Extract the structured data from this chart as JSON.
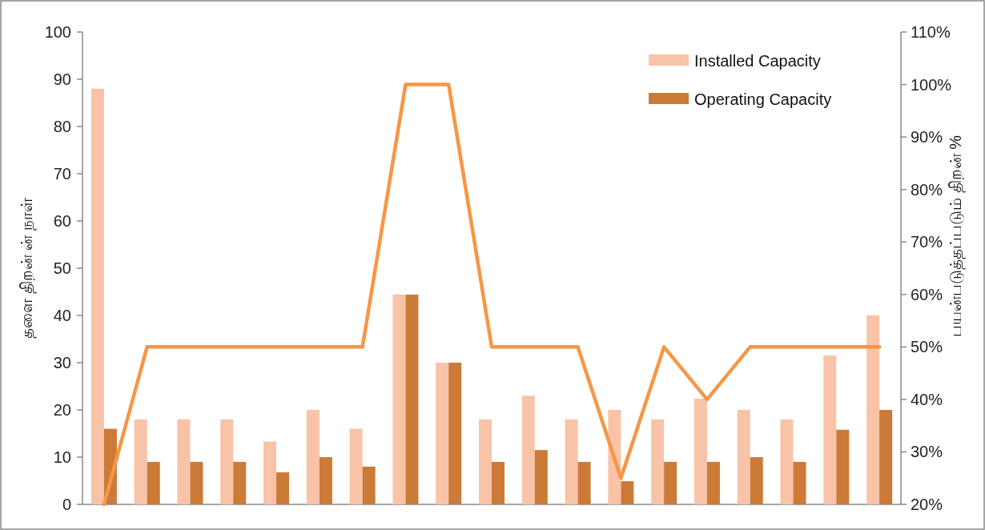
{
  "chart_data": {
    "type": "bar",
    "ylabel": "தளை திறன் ன் நாள்",
    "y2label": "பயன்படுத்தப்படும் திறன் %",
    "categories": [
      null,
      null,
      null,
      null,
      null,
      null,
      null,
      null,
      null,
      null,
      null,
      null,
      null,
      null,
      null,
      null,
      null,
      null,
      null
    ],
    "series": [
      {
        "name": "Installed Capacity",
        "color": "#f8c3a7",
        "values": [
          88,
          18,
          18,
          18,
          13.3,
          20,
          16,
          44.4,
          30,
          18,
          23,
          18,
          20,
          18,
          22.4,
          20,
          18,
          31.5,
          40
        ]
      },
      {
        "name": "Operating Capacity",
        "color": "#cc7a38",
        "values": [
          16,
          9,
          9,
          9,
          6.8,
          10,
          8,
          44.4,
          30,
          9,
          11.5,
          9,
          4.9,
          9,
          9,
          10,
          9,
          15.8,
          20
        ]
      },
      {
        "type": "line",
        "axis": "y2",
        "color": "#f79646",
        "values": [
          20,
          50,
          50,
          50,
          50,
          50,
          50,
          100,
          100,
          50,
          50,
          50,
          25,
          50,
          40,
          50,
          50,
          50,
          50
        ]
      }
    ],
    "ylim": [
      0,
      100
    ],
    "yticks": [
      0,
      10,
      20,
      30,
      40,
      50,
      60,
      70,
      80,
      90,
      100
    ],
    "y2lim": [
      20,
      110
    ],
    "y2ticks": [
      {
        "value": 20,
        "label": "20%"
      },
      {
        "value": 30,
        "label": "30%"
      },
      {
        "value": 40,
        "label": "40%"
      },
      {
        "value": 50,
        "label": "50%"
      },
      {
        "value": 60,
        "label": "60%"
      },
      {
        "value": 70,
        "label": "70%"
      },
      {
        "value": 80,
        "label": "80%"
      },
      {
        "value": 90,
        "label": "90%"
      },
      {
        "value": 100,
        "label": "100%"
      },
      {
        "value": 110,
        "label": "110%"
      }
    ],
    "legend": "top right",
    "grid": false,
    "marker": "none",
    "line_style": "solid"
  }
}
